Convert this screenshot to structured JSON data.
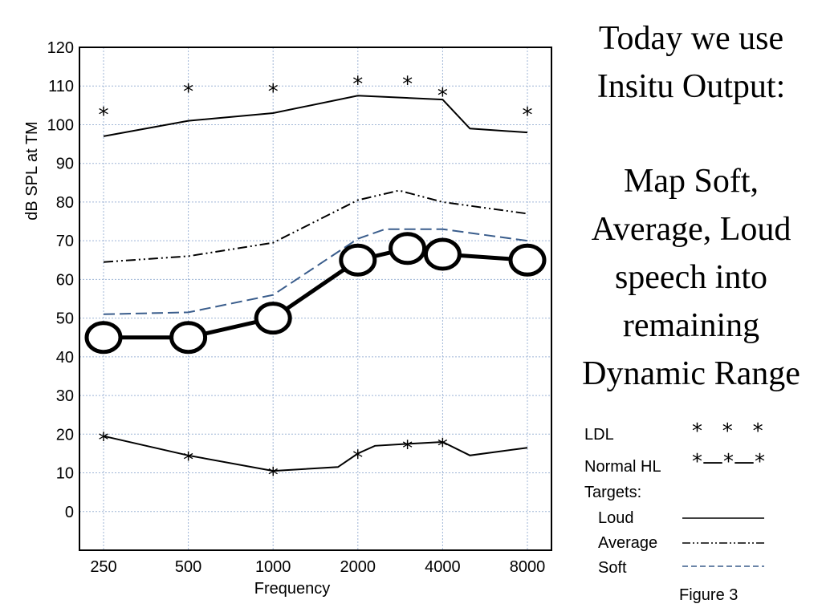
{
  "headline": {
    "line1": "Today we use",
    "line2": "Insitu Output:",
    "line3": "Map Soft,",
    "line4": "Average, Loud",
    "line5": "speech into",
    "line6": "remaining",
    "line7": "Dynamic Range"
  },
  "legend": {
    "ldl_label": "LDL",
    "ldl_symbol": "*   *   *",
    "normal_label": "Normal HL",
    "normal_symbol": "*—*—*",
    "targets_label": "Targets:",
    "loud_label": "Loud",
    "average_label": "Average",
    "soft_label": "Soft"
  },
  "figure_caption": "Figure 3",
  "chart_data": {
    "type": "line",
    "xlabel": "Frequency",
    "ylabel": "dB SPL at TM",
    "x_ticks": [
      "250",
      "500",
      "1000",
      "2000",
      "4000",
      "8000"
    ],
    "y_ticks": [
      "0",
      "10",
      "20",
      "30",
      "40",
      "50",
      "60",
      "70",
      "80",
      "90",
      "100",
      "110",
      "120"
    ],
    "ylim": [
      -10,
      120
    ],
    "x_scale": "log2",
    "grid": true,
    "colors": {
      "loud": "#000000",
      "average": "#000000",
      "soft": "#3a5d8c",
      "grid": "#9fb5d6"
    },
    "ldl_stars": {
      "x": [
        250,
        500,
        1000,
        2000,
        3000,
        4000,
        8000
      ],
      "y": [
        104,
        110,
        110,
        112,
        112,
        109,
        104
      ]
    },
    "loud": {
      "x": [
        250,
        500,
        1000,
        2000,
        4000,
        5000,
        8000
      ],
      "y": [
        97,
        101,
        103,
        107.5,
        106.5,
        99,
        98
      ]
    },
    "average": {
      "x": [
        250,
        500,
        1000,
        2000,
        2800,
        4000,
        8000
      ],
      "y": [
        64.5,
        66,
        69.5,
        80.5,
        83,
        80,
        77
      ]
    },
    "soft": {
      "x": [
        250,
        500,
        1000,
        2000,
        2500,
        4000,
        8000
      ],
      "y": [
        51,
        51.5,
        56,
        70.5,
        73,
        73,
        70
      ]
    },
    "insitu_output": {
      "x": [
        250,
        500,
        1000,
        2000,
        3000,
        4000,
        8000
      ],
      "y": [
        45,
        45,
        50,
        65,
        68,
        66.5,
        65
      ]
    },
    "normal_hl": {
      "x": [
        250,
        500,
        1000,
        1700,
        2000,
        2300,
        3000,
        4000,
        5000,
        8000
      ],
      "y": [
        19.5,
        14.5,
        10.5,
        11.5,
        15,
        17,
        17.5,
        18,
        14.5,
        16.5
      ]
    },
    "normal_hl_stars": {
      "x": [
        250,
        500,
        1000,
        2000,
        3000,
        4000
      ],
      "y": [
        19.5,
        14.5,
        10.5,
        15,
        17.5,
        18
      ]
    }
  }
}
